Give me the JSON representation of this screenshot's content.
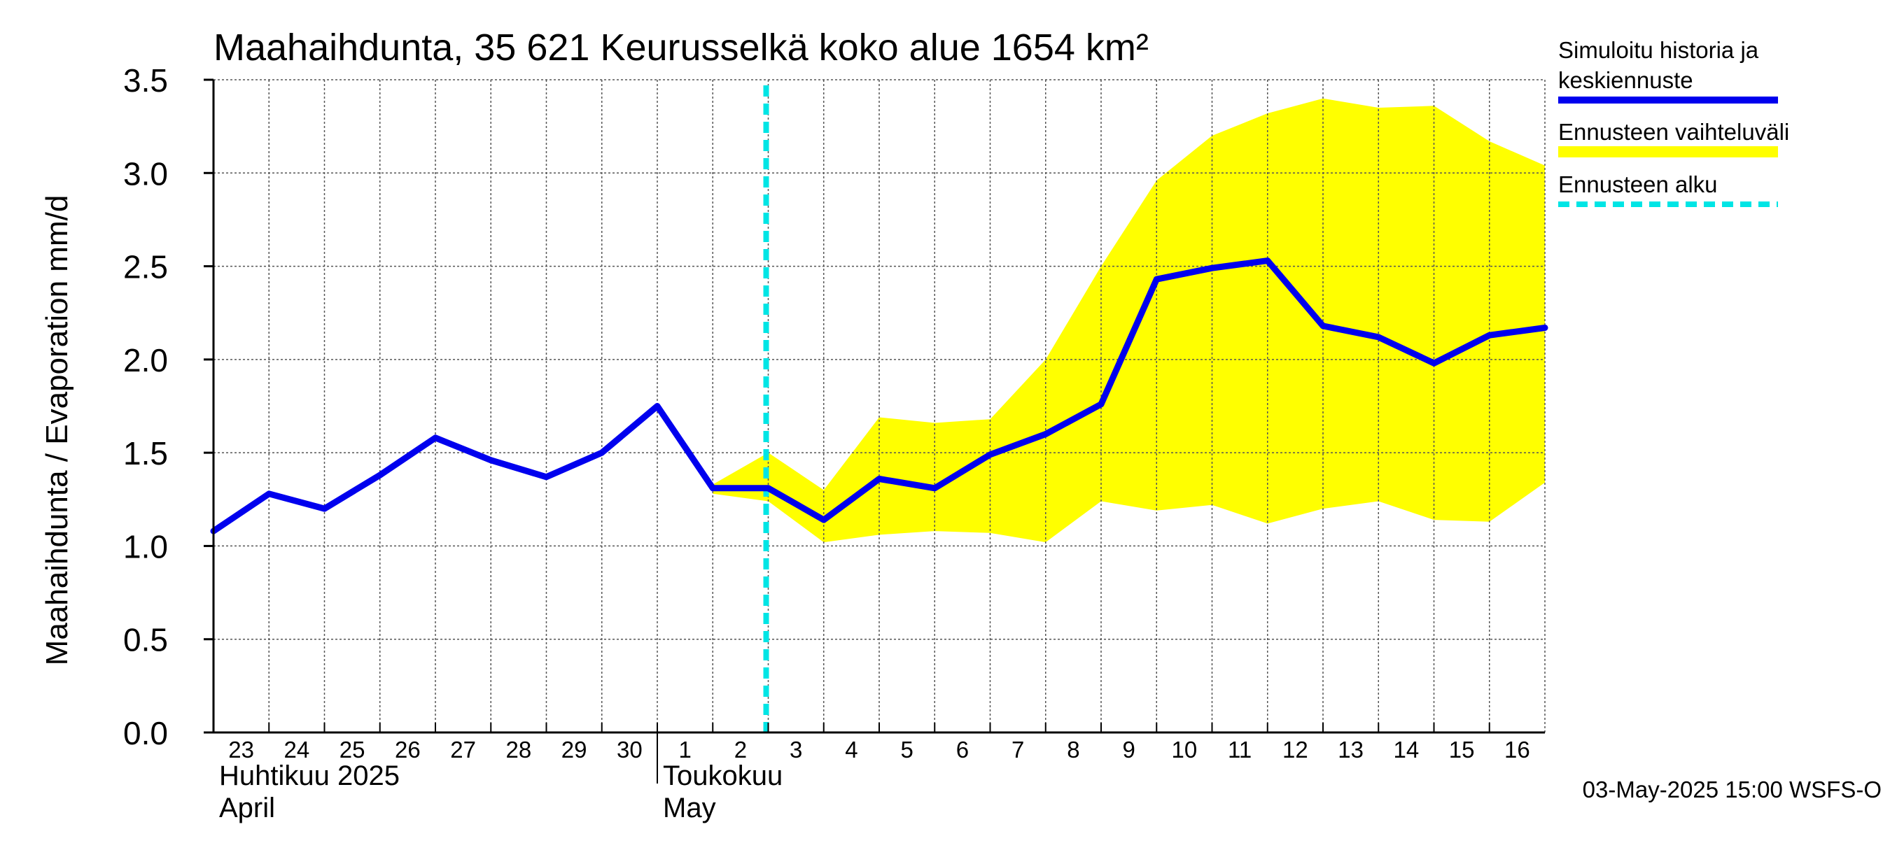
{
  "colors": {
    "sim_line": "#0000ee",
    "band": "#ffff00",
    "forecast_start": "#00e5e5",
    "grid": "#555555",
    "axis": "#000000",
    "background": "#ffffff"
  },
  "chart_data": {
    "type": "line",
    "title": "Maahaihdunta, 35 621 Keurusselkä koko alue 1654 km²",
    "ylabel": "Maahaihdunta / Evaporation   mm/d",
    "ylim": [
      0,
      3.5
    ],
    "yticks": [
      0.0,
      0.5,
      1.0,
      1.5,
      2.0,
      2.5,
      3.0,
      3.5
    ],
    "ytick_labels": [
      "0.0",
      "0.5",
      "1.0",
      "1.5",
      "2.0",
      "2.5",
      "3.0",
      "3.5"
    ],
    "xlim": [
      0,
      24
    ],
    "x_tick_labels": [
      "23",
      "24",
      "25",
      "26",
      "27",
      "28",
      "29",
      "30",
      "1",
      "2",
      "3",
      "4",
      "5",
      "6",
      "7",
      "8",
      "9",
      "10",
      "11",
      "12",
      "13",
      "14",
      "15",
      "16"
    ],
    "month_labels": [
      {
        "fi": "Huhtikuu  2025",
        "en": "April",
        "start_day_index": 0
      },
      {
        "fi": "Toukokuu",
        "en": "May",
        "start_day_index": 8
      }
    ],
    "month_boundary_x": 8,
    "series": [
      {
        "name": "Simuloitu historia ja keskiennuste",
        "x": [
          0,
          1,
          2,
          3,
          4,
          5,
          6,
          7,
          8,
          9,
          10,
          11,
          12,
          13,
          14,
          15,
          16,
          17,
          18,
          19,
          20,
          21,
          22,
          23,
          24
        ],
        "values": [
          1.08,
          1.28,
          1.2,
          1.38,
          1.58,
          1.46,
          1.37,
          1.5,
          1.75,
          1.31,
          1.31,
          1.14,
          1.36,
          1.31,
          1.49,
          1.6,
          1.76,
          2.43,
          2.49,
          2.53,
          2.18,
          2.12,
          1.98,
          2.13,
          2.17
        ]
      }
    ],
    "band": {
      "name": "Ennusteen vaihteluväli",
      "x": [
        9,
        10,
        11,
        12,
        13,
        14,
        15,
        16,
        17,
        18,
        19,
        20,
        21,
        22,
        23,
        24
      ],
      "upper": [
        1.33,
        1.5,
        1.3,
        1.69,
        1.66,
        1.68,
        2.0,
        2.5,
        2.96,
        3.2,
        3.32,
        3.4,
        3.35,
        3.36,
        3.17,
        3.04
      ],
      "lower": [
        1.28,
        1.24,
        1.02,
        1.06,
        1.08,
        1.07,
        1.02,
        1.24,
        1.19,
        1.22,
        1.12,
        1.2,
        1.24,
        1.14,
        1.13,
        1.34
      ]
    },
    "forecast_start_x": 10,
    "legend": {
      "position": "right",
      "entries": [
        {
          "label_line1": "Simuloitu historia ja",
          "label_line2": "keskiennuste",
          "style": "line"
        },
        {
          "label_line1": "Ennusteen vaihteluväli",
          "label_line2": "",
          "style": "band"
        },
        {
          "label_line1": "Ennusteen alku",
          "label_line2": "",
          "style": "dashed"
        }
      ]
    },
    "footer": "03-May-2025 15:00 WSFS-O"
  }
}
